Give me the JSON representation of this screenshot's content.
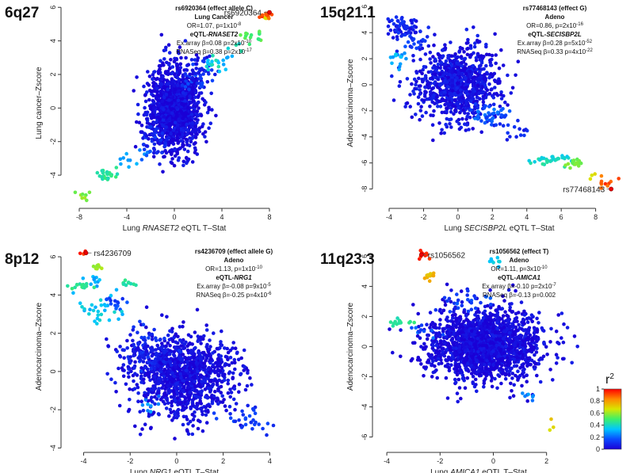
{
  "figure": "Regional eQTL vs GWAS Z-score scatter plots for four lung cancer risk loci",
  "colorbar": {
    "title": "r",
    "title_sup": "2",
    "ticks": [
      "1",
      "0.8",
      "0.6",
      "0.4",
      "0.2",
      "0"
    ],
    "colors": [
      "#1a00d6",
      "#0a4bff",
      "#00c6ff",
      "#3cf06a",
      "#d8e600",
      "#ff8a00",
      "#ff0000"
    ]
  },
  "chart_data": [
    {
      "type": "scatter",
      "region": "6q27",
      "title_lines": [
        "rs6920364 (effect allele C)",
        "Lung Cancer"
      ],
      "eqtl_pre": "eQTL-",
      "eqtl_gene": "RNASET2",
      "or_text": "OR=1.07, p=1x10",
      "or_exp": "-8",
      "exarray_text": "Ex.array β=0.08 p=2x10",
      "exarray_exp": "-10",
      "rnaseq_text": "RNASeq β=0.38 p=2x10",
      "rnaseq_exp": "-17",
      "ylabel": "Lung cancer–Zscore",
      "xlabel_pre": "Lung ",
      "xlabel_gene": "RNASET2",
      "xlabel_post": " eQTL T–Stat",
      "xlim": [
        -9,
        9
      ],
      "ylim": [
        -5.6,
        6.2
      ],
      "xticks": [
        -8,
        -4,
        0,
        4,
        8
      ],
      "yticks": [
        -4,
        -2,
        0,
        2,
        4,
        6
      ],
      "lead_snp": {
        "label": "rs6920364",
        "x": 8.0,
        "y": 5.7
      },
      "clusters": [
        {
          "x": 0,
          "y": 0,
          "sx": 1.1,
          "sy": 1.25,
          "n": 1250,
          "r2": 0.02,
          "spread": 0.06
        },
        {
          "x": 1.8,
          "y": 2.0,
          "sx": 0.8,
          "sy": 0.45,
          "n": 60,
          "r2": 0.1,
          "spread": 0.08
        },
        {
          "x": -1.6,
          "y": -1.9,
          "sx": 0.6,
          "sy": 0.5,
          "n": 40,
          "r2": 0.08,
          "spread": 0.06
        },
        {
          "x": 3.2,
          "y": 2.5,
          "sx": 0.45,
          "sy": 0.3,
          "n": 14,
          "r2": 0.38,
          "spread": 0.06
        },
        {
          "x": 4.2,
          "y": 3.0,
          "sx": 0.35,
          "sy": 0.3,
          "n": 6,
          "r2": 0.3,
          "spread": 0.04
        },
        {
          "x": 6.5,
          "y": 4.3,
          "sx": 0.45,
          "sy": 0.18,
          "n": 14,
          "r2": 0.5,
          "spread": 0.05
        },
        {
          "x": 5.3,
          "y": 3.6,
          "sx": 0.4,
          "sy": 0.2,
          "n": 5,
          "r2": 0.4,
          "spread": 0.04
        },
        {
          "x": 7.8,
          "y": 5.55,
          "sx": 0.25,
          "sy": 0.12,
          "n": 12,
          "r2": 0.9,
          "spread": 0.06
        },
        {
          "x": 7.6,
          "y": 5.3,
          "sx": 0.15,
          "sy": 0.1,
          "n": 3,
          "r2": 0.7,
          "spread": 0.03
        },
        {
          "x": -5.8,
          "y": -4.0,
          "sx": 0.5,
          "sy": 0.18,
          "n": 22,
          "r2": 0.45,
          "spread": 0.04
        },
        {
          "x": -3.8,
          "y": -3.2,
          "sx": 0.35,
          "sy": 0.25,
          "n": 8,
          "r2": 0.3,
          "spread": 0.04
        },
        {
          "x": -7.6,
          "y": -5.2,
          "sx": 0.4,
          "sy": 0.15,
          "n": 8,
          "r2": 0.58,
          "spread": 0.04
        },
        {
          "x": -2.5,
          "y": -2.7,
          "sx": 0.3,
          "sy": 0.3,
          "n": 6,
          "r2": 0.22,
          "spread": 0.05
        }
      ]
    },
    {
      "type": "scatter",
      "region": "15q21.1",
      "title_lines": [
        "rs77468143 (effect G)",
        "Adeno"
      ],
      "eqtl_pre": "eQTL-",
      "eqtl_gene": "SECISBP2L",
      "or_text": "OR=0.86, p=2x10",
      "or_exp": "-16",
      "exarray_text": "Ex.array β=0.28 p=5x10",
      "exarray_exp": "-52",
      "rnaseq_text": "RNASeq β=0.33 p=4x10",
      "rnaseq_exp": "-22",
      "ylabel": "Adenocarcinoma–Zscore",
      "xlabel_pre": "Lung ",
      "xlabel_gene": "SECISBP2L",
      "xlabel_post": " eQTL T–Stat",
      "xlim": [
        -4.6,
        9.4
      ],
      "ylim": [
        -9.0,
        6.2
      ],
      "xticks": [
        -4,
        -2,
        0,
        2,
        4,
        6,
        8
      ],
      "yticks": [
        -8,
        -6,
        -4,
        -2,
        0,
        2,
        4,
        6
      ],
      "lead_snp": {
        "label": "rs77468143",
        "x": 8.9,
        "y": -8.0
      },
      "clusters": [
        {
          "x": 0,
          "y": 0,
          "sx": 1.2,
          "sy": 1.4,
          "n": 900,
          "r2": 0.04,
          "spread": 0.05
        },
        {
          "x": -3.2,
          "y": 4.4,
          "sx": 0.5,
          "sy": 0.35,
          "n": 60,
          "r2": 0.08,
          "spread": 0.05
        },
        {
          "x": -3.5,
          "y": 2.2,
          "sx": 0.4,
          "sy": 0.3,
          "n": 15,
          "r2": 0.3,
          "spread": 0.06
        },
        {
          "x": -2.5,
          "y": 3.2,
          "sx": 0.4,
          "sy": 0.4,
          "n": 20,
          "r2": 0.12,
          "spread": 0.06
        },
        {
          "x": 2.0,
          "y": -2.4,
          "sx": 0.5,
          "sy": 0.4,
          "n": 40,
          "r2": 0.18,
          "spread": 0.06
        },
        {
          "x": 3.3,
          "y": -3.6,
          "sx": 0.4,
          "sy": 0.4,
          "n": 15,
          "r2": 0.08,
          "spread": 0.05
        },
        {
          "x": 5.5,
          "y": -5.8,
          "sx": 0.6,
          "sy": 0.2,
          "n": 35,
          "r2": 0.4,
          "spread": 0.05
        },
        {
          "x": 6.8,
          "y": -6.0,
          "sx": 0.3,
          "sy": 0.2,
          "n": 15,
          "r2": 0.55,
          "spread": 0.04
        },
        {
          "x": 8.5,
          "y": -7.5,
          "sx": 0.3,
          "sy": 0.25,
          "n": 10,
          "r2": 0.9,
          "spread": 0.06
        },
        {
          "x": 7.8,
          "y": -7.0,
          "sx": 0.15,
          "sy": 0.15,
          "n": 3,
          "r2": 0.7,
          "spread": 0.03
        }
      ]
    },
    {
      "type": "scatter",
      "region": "8p12",
      "title_lines": [
        "rs4236709 (effect allele G)",
        "Adeno"
      ],
      "eqtl_pre": "eQTL-",
      "eqtl_gene": "NRG1",
      "or_text": "OR=1.13, p=1x10",
      "or_exp": "-10",
      "exarray_text": "Ex.array β=-0.08 p=9x10",
      "exarray_exp": "-5",
      "rnaseq_text": "RNASeq β=-0.25 p=4x10",
      "rnaseq_exp": "-6",
      "ylabel": "Adenocarcinoma–Zscore",
      "xlabel_pre": "Lung ",
      "xlabel_gene": "NRG1",
      "xlabel_post": " eQTL T–Stat",
      "xlim": [
        -4.7,
        4.5
      ],
      "ylim": [
        -3.9,
        6.5
      ],
      "xticks": [
        -4,
        -2,
        0,
        2,
        4
      ],
      "yticks": [
        -4,
        -2,
        0,
        2,
        4,
        6
      ],
      "lead_snp": {
        "label": "rs4236709",
        "x": -3.9,
        "y": 6.2
      },
      "clusters": [
        {
          "x": 0.3,
          "y": -0.2,
          "sx": 1.05,
          "sy": 1.05,
          "n": 1100,
          "r2": 0.03,
          "spread": 0.05
        },
        {
          "x": -1.5,
          "y": 1.2,
          "sx": 0.7,
          "sy": 0.6,
          "n": 100,
          "r2": 0.08,
          "spread": 0.06
        },
        {
          "x": -3.2,
          "y": 3.3,
          "sx": 0.5,
          "sy": 0.4,
          "n": 30,
          "r2": 0.35,
          "spread": 0.06
        },
        {
          "x": -4.2,
          "y": 4.5,
          "sx": 0.3,
          "sy": 0.12,
          "n": 15,
          "r2": 0.45,
          "spread": 0.04
        },
        {
          "x": -3.4,
          "y": 5.5,
          "sx": 0.12,
          "sy": 0.1,
          "n": 8,
          "r2": 0.6,
          "spread": 0.03
        },
        {
          "x": -3.6,
          "y": 4.9,
          "sx": 0.2,
          "sy": 0.15,
          "n": 10,
          "r2": 0.3,
          "spread": 0.05
        },
        {
          "x": -2.0,
          "y": 4.6,
          "sx": 0.25,
          "sy": 0.12,
          "n": 10,
          "r2": 0.45,
          "spread": 0.04
        },
        {
          "x": -4.0,
          "y": 6.2,
          "sx": 0.1,
          "sy": 0.05,
          "n": 5,
          "r2": 0.95,
          "spread": 0.03
        },
        {
          "x": -2.8,
          "y": 3.6,
          "sx": 0.4,
          "sy": 0.2,
          "n": 15,
          "r2": 0.15,
          "spread": 0.05
        },
        {
          "x": 3.0,
          "y": -2.6,
          "sx": 0.5,
          "sy": 0.3,
          "n": 30,
          "r2": 0.12,
          "spread": 0.05
        },
        {
          "x": -1.2,
          "y": -1.8,
          "sx": 0.3,
          "sy": 0.3,
          "n": 8,
          "r2": 0.25,
          "spread": 0.05
        }
      ]
    },
    {
      "type": "scatter",
      "region": "11q23.3",
      "title_lines": [
        "rs1056562 (effect T)",
        "Adeno"
      ],
      "eqtl_pre": "eQTL-",
      "eqtl_gene": "AMICA1",
      "or_text": "OR=1.11, p=3x10",
      "or_exp": "-10",
      "exarray_text": "Ex.array β=-0.10 p=2x10",
      "exarray_exp": "-7",
      "rnaseq_text": "RNASeq β=-0.13 p=0.002",
      "rnaseq_exp": "",
      "ylabel": "Adenocarcinoma–Zscore",
      "xlabel_pre": "Lung ",
      "xlabel_gene": "AMICA1",
      "xlabel_post": " eQTL T–Stat",
      "xlim": [
        -4.3,
        3.2
      ],
      "ylim": [
        -6.6,
        6.6
      ],
      "xticks": [
        -4,
        -2,
        0,
        2
      ],
      "yticks": [
        -6,
        -4,
        -2,
        0,
        2,
        4,
        6
      ],
      "lead_snp": {
        "label": "rs1056562",
        "x": -2.7,
        "y": 6.1
      },
      "clusters": [
        {
          "x": -0.3,
          "y": 0.1,
          "sx": 1.05,
          "sy": 1.15,
          "n": 1700,
          "r2": 0.02,
          "spread": 0.05
        },
        {
          "x": -2.6,
          "y": 6.0,
          "sx": 0.12,
          "sy": 0.15,
          "n": 10,
          "r2": 0.95,
          "spread": 0.03
        },
        {
          "x": -2.3,
          "y": 4.7,
          "sx": 0.15,
          "sy": 0.15,
          "n": 10,
          "r2": 0.75,
          "spread": 0.04
        },
        {
          "x": -3.6,
          "y": 1.6,
          "sx": 0.25,
          "sy": 0.15,
          "n": 15,
          "r2": 0.45,
          "spread": 0.04
        },
        {
          "x": 0.2,
          "y": 5.6,
          "sx": 0.2,
          "sy": 0.15,
          "n": 8,
          "r2": 0.35,
          "spread": 0.04
        },
        {
          "x": -1.0,
          "y": 3.0,
          "sx": 0.4,
          "sy": 0.4,
          "n": 25,
          "r2": 0.15,
          "spread": 0.06
        },
        {
          "x": 1.3,
          "y": -3.3,
          "sx": 0.15,
          "sy": 0.12,
          "n": 6,
          "r2": 0.25,
          "spread": 0.04
        },
        {
          "x": 2.2,
          "y": -5.4,
          "sx": 0.1,
          "sy": 0.35,
          "n": 3,
          "r2": 0.7,
          "spread": 0.04
        },
        {
          "x": -2.4,
          "y": 1.1,
          "sx": 0.3,
          "sy": 0.3,
          "n": 10,
          "r2": 0.18,
          "spread": 0.05
        }
      ]
    }
  ]
}
